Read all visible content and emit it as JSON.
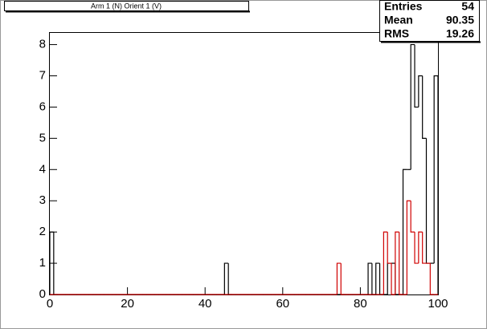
{
  "chart_data": {
    "type": "histogram",
    "title": "Arm 1 (N) Orient 1 (V)",
    "bins": [
      0,
      1,
      2,
      3,
      4,
      5,
      6,
      7,
      8,
      9,
      10,
      11,
      12,
      13,
      14,
      15,
      16,
      17,
      18,
      19,
      20,
      21,
      22,
      23,
      24,
      25,
      26,
      27,
      28,
      29,
      30,
      31,
      32,
      33,
      34,
      35,
      36,
      37,
      38,
      39,
      40,
      41,
      42,
      43,
      44,
      45,
      46,
      47,
      48,
      49,
      50,
      51,
      52,
      53,
      54,
      55,
      56,
      57,
      58,
      59,
      60,
      61,
      62,
      63,
      64,
      65,
      66,
      67,
      68,
      69,
      70,
      71,
      72,
      73,
      74,
      75,
      76,
      77,
      78,
      79,
      80,
      81,
      82,
      83,
      84,
      85,
      86,
      87,
      88,
      89,
      90,
      91,
      92,
      93,
      94,
      95,
      96,
      97,
      98,
      99,
      100
    ],
    "series": [
      {
        "color": "#000000",
        "values": [
          2,
          0,
          0,
          0,
          0,
          0,
          0,
          0,
          0,
          0,
          0,
          0,
          0,
          0,
          0,
          0,
          0,
          0,
          0,
          0,
          0,
          0,
          0,
          0,
          0,
          0,
          0,
          0,
          0,
          0,
          0,
          0,
          0,
          0,
          0,
          0,
          0,
          0,
          0,
          0,
          0,
          0,
          0,
          0,
          0,
          1,
          0,
          0,
          0,
          0,
          0,
          0,
          0,
          0,
          0,
          0,
          0,
          0,
          0,
          0,
          0,
          0,
          0,
          0,
          0,
          0,
          0,
          0,
          0,
          0,
          0,
          0,
          0,
          0,
          0,
          0,
          0,
          0,
          0,
          0,
          0,
          0,
          1,
          0,
          1,
          0,
          0,
          1,
          1,
          0,
          0,
          4,
          4,
          8,
          6,
          7,
          5,
          1,
          1,
          7
        ]
      },
      {
        "color": "#d00000",
        "values": [
          0,
          0,
          0,
          0,
          0,
          0,
          0,
          0,
          0,
          0,
          0,
          0,
          0,
          0,
          0,
          0,
          0,
          0,
          0,
          0,
          0,
          0,
          0,
          0,
          0,
          0,
          0,
          0,
          0,
          0,
          0,
          0,
          0,
          0,
          0,
          0,
          0,
          0,
          0,
          0,
          0,
          0,
          0,
          0,
          0,
          0,
          0,
          0,
          0,
          0,
          0,
          0,
          0,
          0,
          0,
          0,
          0,
          0,
          0,
          0,
          0,
          0,
          0,
          0,
          0,
          0,
          0,
          0,
          0,
          0,
          0,
          0,
          0,
          0,
          1,
          0,
          0,
          0,
          0,
          0,
          0,
          0,
          0,
          0,
          0,
          0,
          2,
          1,
          0,
          2,
          0,
          0,
          3,
          2,
          1,
          2,
          1,
          1,
          0,
          0
        ]
      }
    ],
    "xlim": [
      0,
      100
    ],
    "xticks": [
      0,
      20,
      40,
      60,
      80,
      100
    ],
    "ylim": [
      0,
      8.4
    ],
    "yticks": [
      0,
      1,
      2,
      3,
      4,
      5,
      6,
      7,
      8
    ],
    "stats": [
      {
        "label": "Entries",
        "value": 54
      },
      {
        "label": "Mean",
        "value": 90.35
      },
      {
        "label": "RMS",
        "value": 19.26
      }
    ]
  }
}
